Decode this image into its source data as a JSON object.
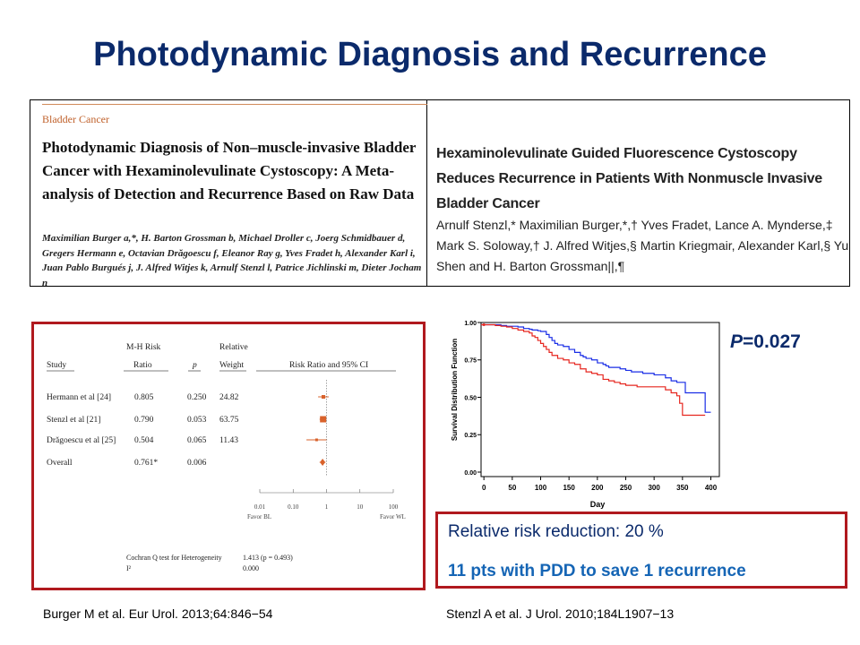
{
  "slide": {
    "title": "Photodynamic Diagnosis and Recurrence"
  },
  "paper_left": {
    "section": "Bladder Cancer",
    "title": "Photodynamic Diagnosis of Non–muscle-invasive Bladder Cancer with Hexaminolevulinate Cystoscopy: A Meta-analysis of Detection and Recurrence Based on Raw Data",
    "authors": "Maximilian Burger a,*, H. Barton Grossman b, Michael Droller c, Joerg Schmidbauer d, Gregers Hermann e, Octavian Drăgoescu f, Eleanor Ray g, Yves Fradet h, Alexander Karl i, Juan Pablo Burgués j, J. Alfred Witjes k, Arnulf Stenzl l, Patrice Jichlinski m, Dieter Jocham n"
  },
  "paper_right": {
    "title": "Hexaminolevulinate Guided Fluorescence Cystoscopy Reduces Recurrence in Patients With Nonmuscle Invasive Bladder Cancer",
    "authors": "Arnulf Stenzl,* Maximilian Burger,*,† Yves Fradet, Lance A. Mynderse,‡ Mark S. Soloway,† J. Alfred Witjes,§ Martin Kriegmair, Alexander Karl,§ Yu Shen and H. Barton Grossman||,¶"
  },
  "forest": {
    "headers": {
      "study": "Study",
      "ratio_top": "M-H Risk",
      "ratio_bottom": "Ratio",
      "p": "p",
      "weight_top": "Relative",
      "weight_bottom": "Weight",
      "ci": "Risk Ratio and 95% CI"
    },
    "rows": [
      {
        "study": "Hermann et al [24]",
        "ratio": "0.805",
        "p": "0.250",
        "weight": "24.82"
      },
      {
        "study": "Stenzl et al [21]",
        "ratio": "0.790",
        "p": "0.053",
        "weight": "63.75"
      },
      {
        "study": "Drăgoescu et al [25]",
        "ratio": "0.504",
        "p": "0.065",
        "weight": "11.43"
      },
      {
        "study": "Overall",
        "ratio": "0.761*",
        "p": "0.006",
        "weight": ""
      }
    ],
    "axis_ticks": [
      "0.01",
      "0.10",
      "1",
      "10",
      "100"
    ],
    "favor_left": "Favor BL",
    "favor_right": "Favor WL",
    "q_label": "Cochran Q test for Heterogeneity",
    "q_value": "1.413 (p = 0.493)",
    "i2_label": "I²",
    "i2_value": "0.000",
    "colors": {
      "marker": "#d9622b"
    }
  },
  "chart_data": {
    "type": "line",
    "title": "",
    "xlabel": "Day",
    "ylabel": "Survival Distribution Function",
    "xlim": [
      0,
      400
    ],
    "ylim": [
      0,
      1.0
    ],
    "xticks": [
      "0",
      "50",
      "100",
      "150",
      "200",
      "250",
      "300",
      "350",
      "400"
    ],
    "yticks": [
      "0.00",
      "0.25",
      "0.50",
      "0.75",
      "1.00"
    ],
    "grid": false,
    "legend": "none",
    "series": [
      {
        "color": "#1a2ee6",
        "x": [
          -5,
          10,
          30,
          40,
          55,
          60,
          70,
          80,
          85,
          95,
          100,
          110,
          115,
          120,
          125,
          130,
          140,
          150,
          160,
          170,
          175,
          180,
          190,
          200,
          210,
          215,
          220,
          230,
          240,
          250,
          260,
          270,
          280,
          290,
          300,
          310,
          320,
          330,
          340,
          350,
          355,
          360,
          370,
          380,
          390,
          400
        ],
        "y": [
          0.985,
          0.985,
          0.98,
          0.975,
          0.975,
          0.97,
          0.96,
          0.955,
          0.95,
          0.945,
          0.94,
          0.92,
          0.9,
          0.88,
          0.86,
          0.85,
          0.84,
          0.82,
          0.8,
          0.78,
          0.77,
          0.76,
          0.75,
          0.73,
          0.72,
          0.71,
          0.7,
          0.7,
          0.69,
          0.68,
          0.67,
          0.67,
          0.66,
          0.66,
          0.65,
          0.65,
          0.63,
          0.61,
          0.6,
          0.6,
          0.53,
          0.53,
          0.53,
          0.53,
          0.4,
          0.4
        ]
      },
      {
        "color": "#e6261f",
        "x": [
          -5,
          10,
          20,
          30,
          40,
          50,
          60,
          70,
          80,
          85,
          90,
          95,
          100,
          105,
          110,
          115,
          120,
          130,
          140,
          150,
          160,
          170,
          180,
          190,
          200,
          210,
          220,
          230,
          240,
          250,
          260,
          270,
          280,
          290,
          300,
          310,
          320,
          330,
          340,
          345,
          350,
          360,
          380,
          390
        ],
        "y": [
          0.985,
          0.985,
          0.98,
          0.975,
          0.97,
          0.96,
          0.95,
          0.94,
          0.93,
          0.91,
          0.9,
          0.88,
          0.86,
          0.84,
          0.82,
          0.8,
          0.78,
          0.76,
          0.75,
          0.73,
          0.72,
          0.69,
          0.67,
          0.66,
          0.65,
          0.62,
          0.61,
          0.6,
          0.59,
          0.58,
          0.58,
          0.57,
          0.57,
          0.57,
          0.57,
          0.57,
          0.55,
          0.53,
          0.51,
          0.46,
          0.38,
          0.38,
          0.38,
          0.38
        ]
      }
    ]
  },
  "pvalue": {
    "symbol": "P",
    "text": "=0.027"
  },
  "summary": {
    "rrr": "Relative risk reduction: 20 %",
    "nnt": "11 pts with PDD to save 1 recurrence"
  },
  "citations": {
    "left": "Burger M et al. Eur Urol. 2013;64:846−54",
    "right": "Stenzl A et al. J Urol. 2010;184L1907−13"
  }
}
